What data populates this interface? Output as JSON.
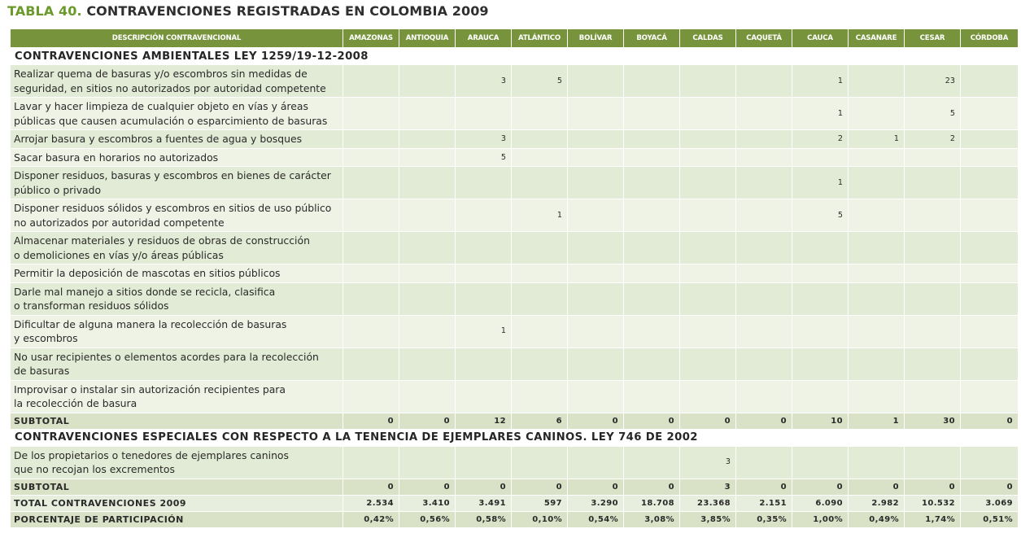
{
  "title": {
    "lead": "TABLA 40.",
    "rest": "CONTRAVENCIONES REGISTRADAS EN COLOMBIA 2009"
  },
  "columns": {
    "desc": "DESCRIPCIÓN CONTRAVENCIONAL",
    "deps": [
      "AMAZONAS",
      "ANTIOQUIA",
      "ARAUCA",
      "ATLÁNTICO",
      "BOLÍVAR",
      "BOYACÁ",
      "CALDAS",
      "CAQUETÁ",
      "CAUCA",
      "CASANARE",
      "CESAR",
      "CÓRDOBA"
    ]
  },
  "sections": {
    "ambientales": {
      "title": "CONTRAVENCIONES AMBIENTALES LEY 1259/19-12-2008",
      "rows": [
        {
          "label": "Realizar quema de basuras y/o escombros sin medidas de\nseguridad, en sitios no autorizados por autoridad competente",
          "values": [
            "",
            "",
            "3",
            "5",
            "",
            "",
            "",
            "",
            "1",
            "",
            "23",
            ""
          ]
        },
        {
          "label": "Lavar y hacer limpieza de cualquier objeto en vías y áreas\npúblicas que causen acumulación o esparcimiento de basuras",
          "values": [
            "",
            "",
            "",
            "",
            "",
            "",
            "",
            "",
            "1",
            "",
            "5",
            ""
          ]
        },
        {
          "label": "Arrojar basura y escombros a fuentes de agua y bosques",
          "values": [
            "",
            "",
            "3",
            "",
            "",
            "",
            "",
            "",
            "2",
            "1",
            "2",
            ""
          ]
        },
        {
          "label": "Sacar basura en horarios no autorizados",
          "values": [
            "",
            "",
            "5",
            "",
            "",
            "",
            "",
            "",
            "",
            "",
            "",
            ""
          ]
        },
        {
          "label": "Disponer residuos, basuras y escombros en bienes de carácter\npúblico o privado",
          "values": [
            "",
            "",
            "",
            "",
            "",
            "",
            "",
            "",
            "1",
            "",
            "",
            ""
          ]
        },
        {
          "label": "Disponer residuos sólidos y escombros en sitios de uso público\nno autorizados por autoridad competente",
          "values": [
            "",
            "",
            "",
            "1",
            "",
            "",
            "",
            "",
            "5",
            "",
            "",
            ""
          ]
        },
        {
          "label": "Almacenar materiales y residuos de obras de construcción\no demoliciones en vías y/o áreas públicas",
          "values": [
            "",
            "",
            "",
            "",
            "",
            "",
            "",
            "",
            "",
            "",
            "",
            ""
          ]
        },
        {
          "label": "Permitir la deposición de mascotas en sitios públicos",
          "values": [
            "",
            "",
            "",
            "",
            "",
            "",
            "",
            "",
            "",
            "",
            "",
            ""
          ]
        },
        {
          "label": "Darle mal manejo a sitios donde se recicla, clasifica\no transforman residuos sólidos",
          "values": [
            "",
            "",
            "",
            "",
            "",
            "",
            "",
            "",
            "",
            "",
            "",
            ""
          ]
        },
        {
          "label": "Dificultar de alguna manera la recolección de basuras\ny escombros",
          "values": [
            "",
            "",
            "1",
            "",
            "",
            "",
            "",
            "",
            "",
            "",
            "",
            ""
          ]
        },
        {
          "label": "No usar recipientes o elementos acordes para la recolección\nde basuras",
          "values": [
            "",
            "",
            "",
            "",
            "",
            "",
            "",
            "",
            "",
            "",
            "",
            ""
          ]
        },
        {
          "label": "Improvisar o instalar sin autorización recipientes para\nla recolección de basura",
          "values": [
            "",
            "",
            "",
            "",
            "",
            "",
            "",
            "",
            "",
            "",
            "",
            ""
          ]
        }
      ],
      "subtotal": {
        "label": "SUBTOTAL",
        "values": [
          "0",
          "0",
          "12",
          "6",
          "0",
          "0",
          "0",
          "0",
          "10",
          "1",
          "30",
          "0"
        ]
      }
    },
    "caninos": {
      "title": "CONTRAVENCIONES ESPECIALES CON RESPECTO A LA TENENCIA DE EJEMPLARES CANINOS. LEY 746 DE 2002",
      "rows": [
        {
          "label": "De los propietarios o tenedores de ejemplares caninos\nque no recojan los excrementos",
          "values": [
            "",
            "",
            "",
            "",
            "",
            "",
            "3",
            "",
            "",
            "",
            "",
            ""
          ]
        }
      ],
      "subtotal": {
        "label": "SUBTOTAL",
        "values": [
          "0",
          "0",
          "0",
          "0",
          "0",
          "0",
          "3",
          "0",
          "0",
          "0",
          "0",
          "0"
        ]
      }
    }
  },
  "total": {
    "label": "TOTAL CONTRAVENCIONES 2009",
    "values": [
      "2.534",
      "3.410",
      "3.491",
      "597",
      "3.290",
      "18.708",
      "23.368",
      "2.151",
      "6.090",
      "2.982",
      "10.532",
      "3.069"
    ]
  },
  "porcentaje": {
    "label": "PORCENTAJE DE PARTICIPACIÓN",
    "values": [
      "0,42%",
      "0,56%",
      "0,58%",
      "0,10%",
      "0,54%",
      "3,08%",
      "3,85%",
      "0,35%",
      "1,00%",
      "0,49%",
      "1,74%",
      "0,51%"
    ]
  }
}
